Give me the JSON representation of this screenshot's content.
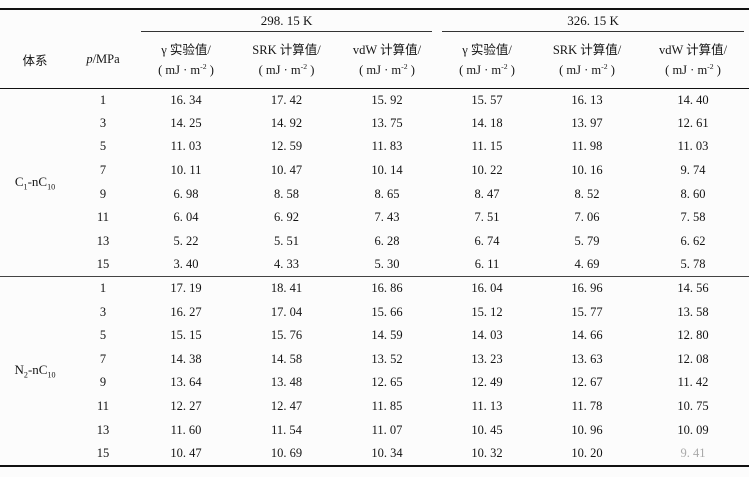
{
  "page": {
    "background": "#fcfcfc",
    "text_color": "#141414",
    "rule_color": "#111111"
  },
  "table": {
    "temps": [
      "298. 15 K",
      "326. 15 K"
    ],
    "col_system": "体系",
    "col_pressure": {
      "italic": "p",
      "rest": "/MPa"
    },
    "measure_cols": [
      "γ 实验值/",
      "SRK 计算值/",
      "vdW 计算值/"
    ],
    "unit": {
      "prefix": "( mJ · m",
      "sup": "-2",
      "suffix": " )"
    },
    "faded_cell": {
      "section": 1,
      "row": 7,
      "value": 5
    },
    "sections": [
      {
        "system": [
          [
            "C",
            false
          ],
          [
            "1",
            true
          ],
          [
            "-nC",
            false
          ],
          [
            "10",
            true
          ]
        ],
        "rows": [
          {
            "p": "1",
            "values": [
              "16. 34",
              "17. 42",
              "15. 92",
              "15. 57",
              "16. 13",
              "14. 40"
            ]
          },
          {
            "p": "3",
            "values": [
              "14. 25",
              "14. 92",
              "13. 75",
              "14. 18",
              "13. 97",
              "12. 61"
            ]
          },
          {
            "p": "5",
            "values": [
              "11. 03",
              "12. 59",
              "11. 83",
              "11. 15",
              "11. 98",
              "11. 03"
            ]
          },
          {
            "p": "7",
            "values": [
              "10. 11",
              "10. 47",
              "10. 14",
              "10. 22",
              "10. 16",
              "9. 74"
            ]
          },
          {
            "p": "9",
            "values": [
              "6. 98",
              "8. 58",
              "8. 65",
              "8. 47",
              "8. 52",
              "8. 60"
            ]
          },
          {
            "p": "11",
            "values": [
              "6. 04",
              "6. 92",
              "7. 43",
              "7. 51",
              "7. 06",
              "7. 58"
            ]
          },
          {
            "p": "13",
            "values": [
              "5. 22",
              "5. 51",
              "6. 28",
              "6. 74",
              "5. 79",
              "6. 62"
            ]
          },
          {
            "p": "15",
            "values": [
              "3. 40",
              "4. 33",
              "5. 30",
              "6. 11",
              "4. 69",
              "5. 78"
            ]
          }
        ]
      },
      {
        "system": [
          [
            "N",
            false
          ],
          [
            "2",
            true
          ],
          [
            "-nC",
            false
          ],
          [
            "10",
            true
          ]
        ],
        "rows": [
          {
            "p": "1",
            "values": [
              "17. 19",
              "18. 41",
              "16. 86",
              "16. 04",
              "16. 96",
              "14. 56"
            ]
          },
          {
            "p": "3",
            "values": [
              "16. 27",
              "17. 04",
              "15. 66",
              "15. 12",
              "15. 77",
              "13. 58"
            ]
          },
          {
            "p": "5",
            "values": [
              "15. 15",
              "15. 76",
              "14. 59",
              "14. 03",
              "14. 66",
              "12. 80"
            ]
          },
          {
            "p": "7",
            "values": [
              "14. 38",
              "14. 58",
              "13. 52",
              "13. 23",
              "13. 63",
              "12. 08"
            ]
          },
          {
            "p": "9",
            "values": [
              "13. 64",
              "13. 48",
              "12. 65",
              "12. 49",
              "12. 67",
              "11. 42"
            ]
          },
          {
            "p": "11",
            "values": [
              "12. 27",
              "12. 47",
              "11. 85",
              "11. 13",
              "11. 78",
              "10. 75"
            ]
          },
          {
            "p": "13",
            "values": [
              "11. 60",
              "11. 54",
              "11. 07",
              "10. 45",
              "10. 96",
              "10. 09"
            ]
          },
          {
            "p": "15",
            "values": [
              "10. 47",
              "10. 69",
              "10. 34",
              "10. 32",
              "10. 20",
              "9. 41"
            ]
          }
        ]
      }
    ]
  }
}
